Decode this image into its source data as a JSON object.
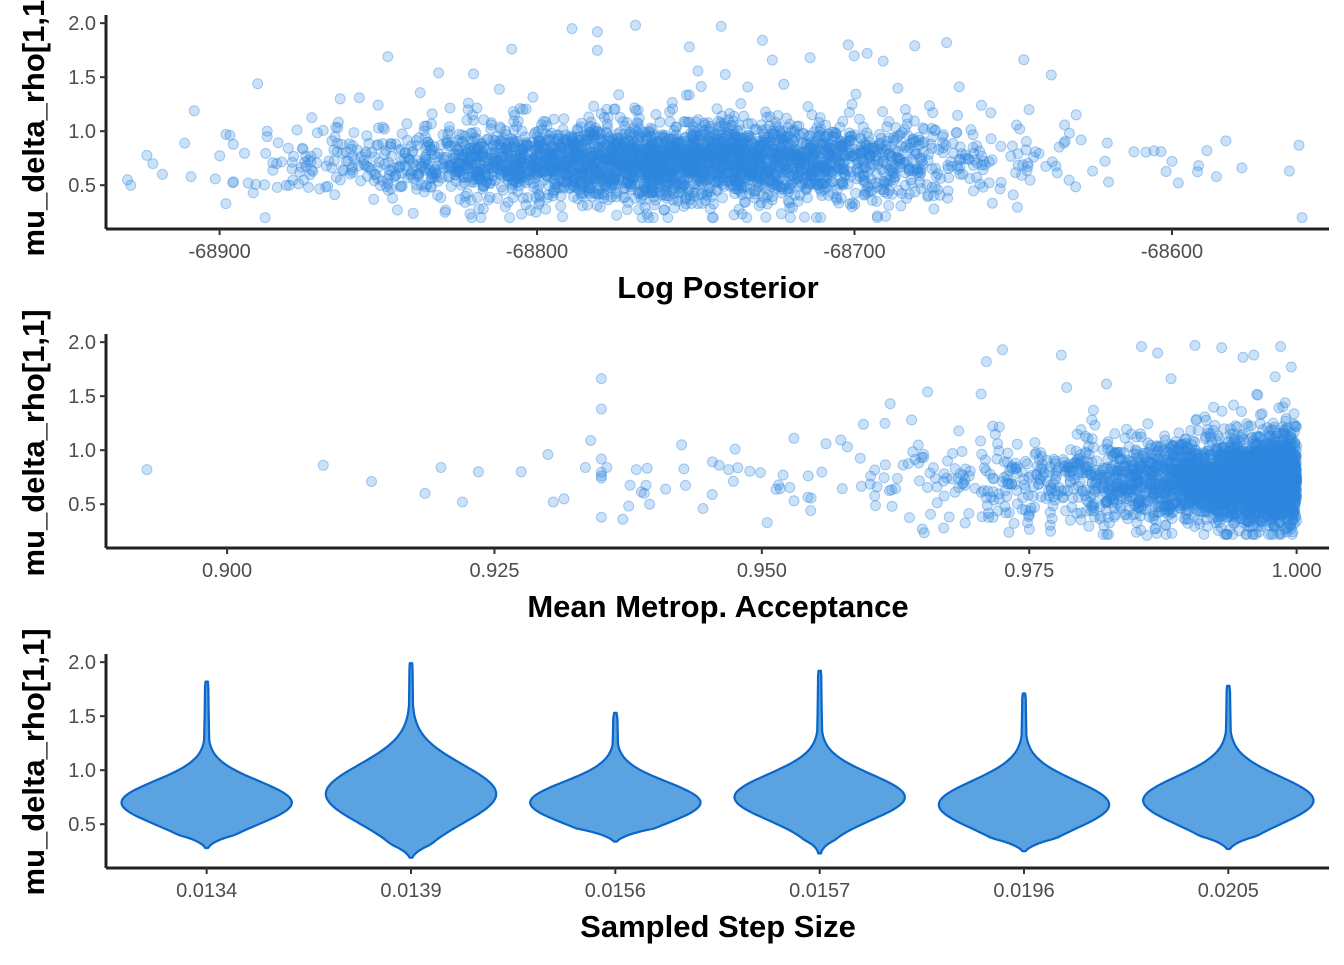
{
  "colors": {
    "point": "#2e86de",
    "violin_fill": "#5ba3e0",
    "violin_stroke": "#0a66c9",
    "axis": "#222222"
  },
  "chart_data": [
    {
      "type": "scatter",
      "xlabel": "Log Posterior",
      "ylabel": "mu_delta_rho[1,1]",
      "xlim": [
        -68932,
        -68554
      ],
      "ylim": [
        0.15,
        2.02
      ],
      "xticks": [
        -68900,
        -68800,
        -68700,
        -68600
      ],
      "xtick_labels": [
        "-68900",
        "-68800",
        "-68700",
        "-68600"
      ],
      "yticks": [
        0.5,
        1.0,
        1.5,
        2.0
      ],
      "ytick_labels": [
        "0.5",
        "1.0",
        "1.5",
        "2.0"
      ],
      "grid": false,
      "point_alpha": 0.25,
      "points": [
        [
          -68929,
          0.55
        ],
        [
          -68928,
          0.5
        ],
        [
          -68921,
          0.7
        ],
        [
          -68918,
          0.6
        ],
        [
          -68911,
          0.89
        ],
        [
          -68909,
          0.58
        ],
        [
          -68908,
          1.19
        ],
        [
          -68898,
          0.97
        ],
        [
          -68898,
          0.33
        ],
        [
          -68891,
          0.52
        ],
        [
          -68888,
          1.44
        ],
        [
          -68885,
          1.0
        ],
        [
          -68885,
          0.95
        ],
        [
          -68882,
          0.7
        ],
        [
          -68879,
          0.5
        ],
        [
          -68872,
          0.48
        ],
        [
          -68862,
          1.3
        ],
        [
          -68856,
          1.31
        ],
        [
          -68847,
          1.69
        ],
        [
          -68844,
          0.27
        ],
        [
          -68839,
          0.24
        ],
        [
          -68831,
          1.54
        ],
        [
          -68829,
          0.25
        ],
        [
          -68820,
          1.53
        ],
        [
          -68808,
          1.76
        ],
        [
          -68789,
          1.95
        ],
        [
          -68781,
          1.92
        ],
        [
          -68769,
          1.98
        ],
        [
          -68752,
          1.78
        ],
        [
          -68742,
          1.97
        ],
        [
          -68729,
          1.84
        ],
        [
          -68714,
          1.68
        ],
        [
          -68702,
          1.8
        ],
        [
          -68696,
          1.72
        ],
        [
          -68681,
          1.79
        ],
        [
          -68671,
          1.82
        ],
        [
          -68667,
          1.41
        ],
        [
          -68660,
          1.24
        ],
        [
          -68645,
          1.2
        ],
        [
          -68638,
          1.52
        ],
        [
          -68634,
          0.89
        ],
        [
          -68625,
          0.63
        ],
        [
          -68620,
          0.53
        ],
        [
          -68612,
          0.81
        ],
        [
          -68600,
          0.72
        ],
        [
          -68598,
          0.52
        ],
        [
          -68589,
          0.82
        ],
        [
          -68586,
          0.58
        ],
        [
          -68583,
          0.91
        ],
        [
          -68578,
          0.66
        ],
        [
          -68563,
          0.63
        ],
        [
          -68560,
          0.87
        ],
        [
          -68712,
          0.2
        ],
        [
          -68693,
          0.35
        ],
        [
          -68675,
          0.28
        ],
        [
          -68650,
          0.41
        ],
        [
          -68810,
          0.3
        ],
        [
          -68795,
          0.4
        ],
        [
          -68760,
          0.27
        ],
        [
          -68730,
          0.31
        ]
      ],
      "cloud": {
        "x_mean": -68760,
        "x_sd": 48,
        "y_mean": 0.72,
        "y_sd": 0.17,
        "n": 3200,
        "seed": 11
      }
    },
    {
      "type": "scatter",
      "xlabel": "Mean Metrop. Acceptance",
      "ylabel": "mu_delta_rho[1,1]",
      "xlim": [
        0.8898,
        1.002
      ],
      "ylim": [
        0.15,
        2.02
      ],
      "xticks": [
        0.9,
        0.925,
        0.95,
        0.975,
        1.0
      ],
      "xtick_labels": [
        "0.900",
        "0.925",
        "0.950",
        "0.975",
        "1.000"
      ],
      "yticks": [
        0.5,
        1.0,
        1.5,
        2.0
      ],
      "ytick_labels": [
        "0.5",
        "1.0",
        "1.5",
        "2.0"
      ],
      "grid": false,
      "point_alpha": 0.25,
      "points": [
        [
          0.8925,
          0.82
        ],
        [
          0.909,
          0.86
        ],
        [
          0.9135,
          0.71
        ],
        [
          0.9185,
          0.6
        ],
        [
          0.92,
          0.84
        ],
        [
          0.9235,
          0.8
        ],
        [
          0.922,
          0.52
        ],
        [
          0.9275,
          0.8
        ],
        [
          0.93,
          0.96
        ],
        [
          0.9305,
          0.52
        ],
        [
          0.9315,
          0.55
        ],
        [
          0.934,
          1.09
        ],
        [
          0.9335,
          0.84
        ],
        [
          0.9355,
          0.84
        ],
        [
          0.937,
          0.36
        ],
        [
          0.939,
          0.6
        ],
        [
          0.9395,
          0.5
        ],
        [
          0.941,
          0.64
        ],
        [
          0.9425,
          1.05
        ],
        [
          0.9445,
          0.46
        ],
        [
          0.946,
          0.86
        ],
        [
          0.9475,
          1.01
        ],
        [
          0.9505,
          0.33
        ],
        [
          0.953,
          1.11
        ],
        [
          0.956,
          1.06
        ],
        [
          0.958,
          1.03
        ],
        [
          0.9595,
          1.24
        ],
        [
          0.962,
          1.43
        ],
        [
          0.964,
          1.28
        ],
        [
          0.9655,
          1.54
        ],
        [
          0.971,
          1.82
        ],
        [
          0.9725,
          1.93
        ],
        [
          0.9705,
          1.52
        ],
        [
          0.978,
          1.88
        ],
        [
          0.9785,
          1.58
        ],
        [
          0.981,
          1.37
        ],
        [
          0.987,
          1.9
        ],
        [
          0.9855,
          1.96
        ],
        [
          0.9905,
          1.97
        ],
        [
          0.993,
          1.95
        ],
        [
          0.995,
          1.86
        ],
        [
          0.996,
          1.88
        ],
        [
          0.9985,
          1.96
        ],
        [
          0.9995,
          1.77
        ],
        [
          0.998,
          1.68
        ],
        [
          0.965,
          0.27
        ],
        [
          0.967,
          0.28
        ],
        [
          0.977,
          0.25
        ],
        [
          0.986,
          0.21
        ],
        [
          0.9935,
          0.22
        ]
      ],
      "cloud": {
        "x_mode": 1.0,
        "x_scale": 0.011,
        "y_mean": 0.72,
        "y_sd": 0.19,
        "n": 3200,
        "seed": 23
      }
    },
    {
      "type": "violin",
      "xlabel": "Sampled Step Size",
      "ylabel": "mu_delta_rho[1,1]",
      "categories": [
        "0.0134",
        "0.0139",
        "0.0156",
        "0.0157",
        "0.0196",
        "0.0205"
      ],
      "ylim": [
        0.15,
        2.02
      ],
      "yticks": [
        0.5,
        1.0,
        1.5,
        2.0
      ],
      "ytick_labels": [
        "0.5",
        "1.0",
        "1.5",
        "2.0"
      ],
      "grid": false,
      "violins": [
        {
          "min": 0.28,
          "max": 1.82,
          "mode": 0.7,
          "spread": 0.2
        },
        {
          "min": 0.19,
          "max": 1.99,
          "mode": 0.78,
          "spread": 0.27
        },
        {
          "min": 0.34,
          "max": 1.53,
          "mode": 0.7,
          "spread": 0.19
        },
        {
          "min": 0.23,
          "max": 1.92,
          "mode": 0.75,
          "spread": 0.21
        },
        {
          "min": 0.25,
          "max": 1.71,
          "mode": 0.68,
          "spread": 0.22
        },
        {
          "min": 0.27,
          "max": 1.78,
          "mode": 0.72,
          "spread": 0.22
        }
      ]
    }
  ]
}
